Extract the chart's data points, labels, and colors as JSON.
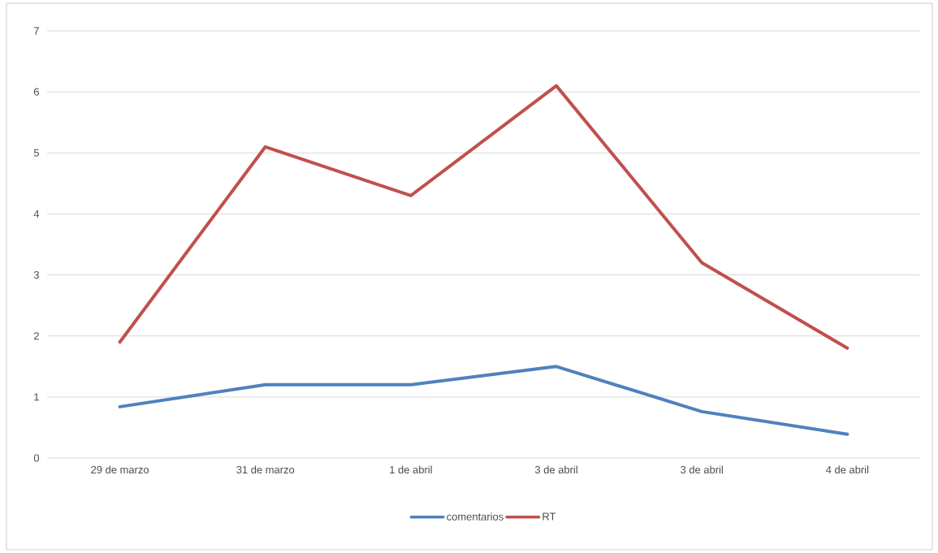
{
  "chart_data": {
    "type": "line",
    "categories": [
      "29 de marzo",
      "31 de marzo",
      "1 de abril",
      "3 de abril",
      "3 de abril",
      "4 de abril"
    ],
    "series": [
      {
        "name": "comentarios",
        "color": "#4f81bd",
        "values": [
          0.84,
          1.2,
          1.2,
          1.5,
          0.76,
          0.39
        ]
      },
      {
        "name": "RT",
        "color": "#c0504d",
        "values": [
          1.9,
          5.1,
          4.3,
          6.1,
          3.2,
          1.8
        ]
      }
    ],
    "ylim": [
      0,
      7
    ],
    "yticks": [
      0,
      1,
      2,
      3,
      4,
      5,
      6,
      7
    ],
    "grid": "y",
    "legend": "bottom",
    "marker": "none",
    "line_style": "solid"
  }
}
